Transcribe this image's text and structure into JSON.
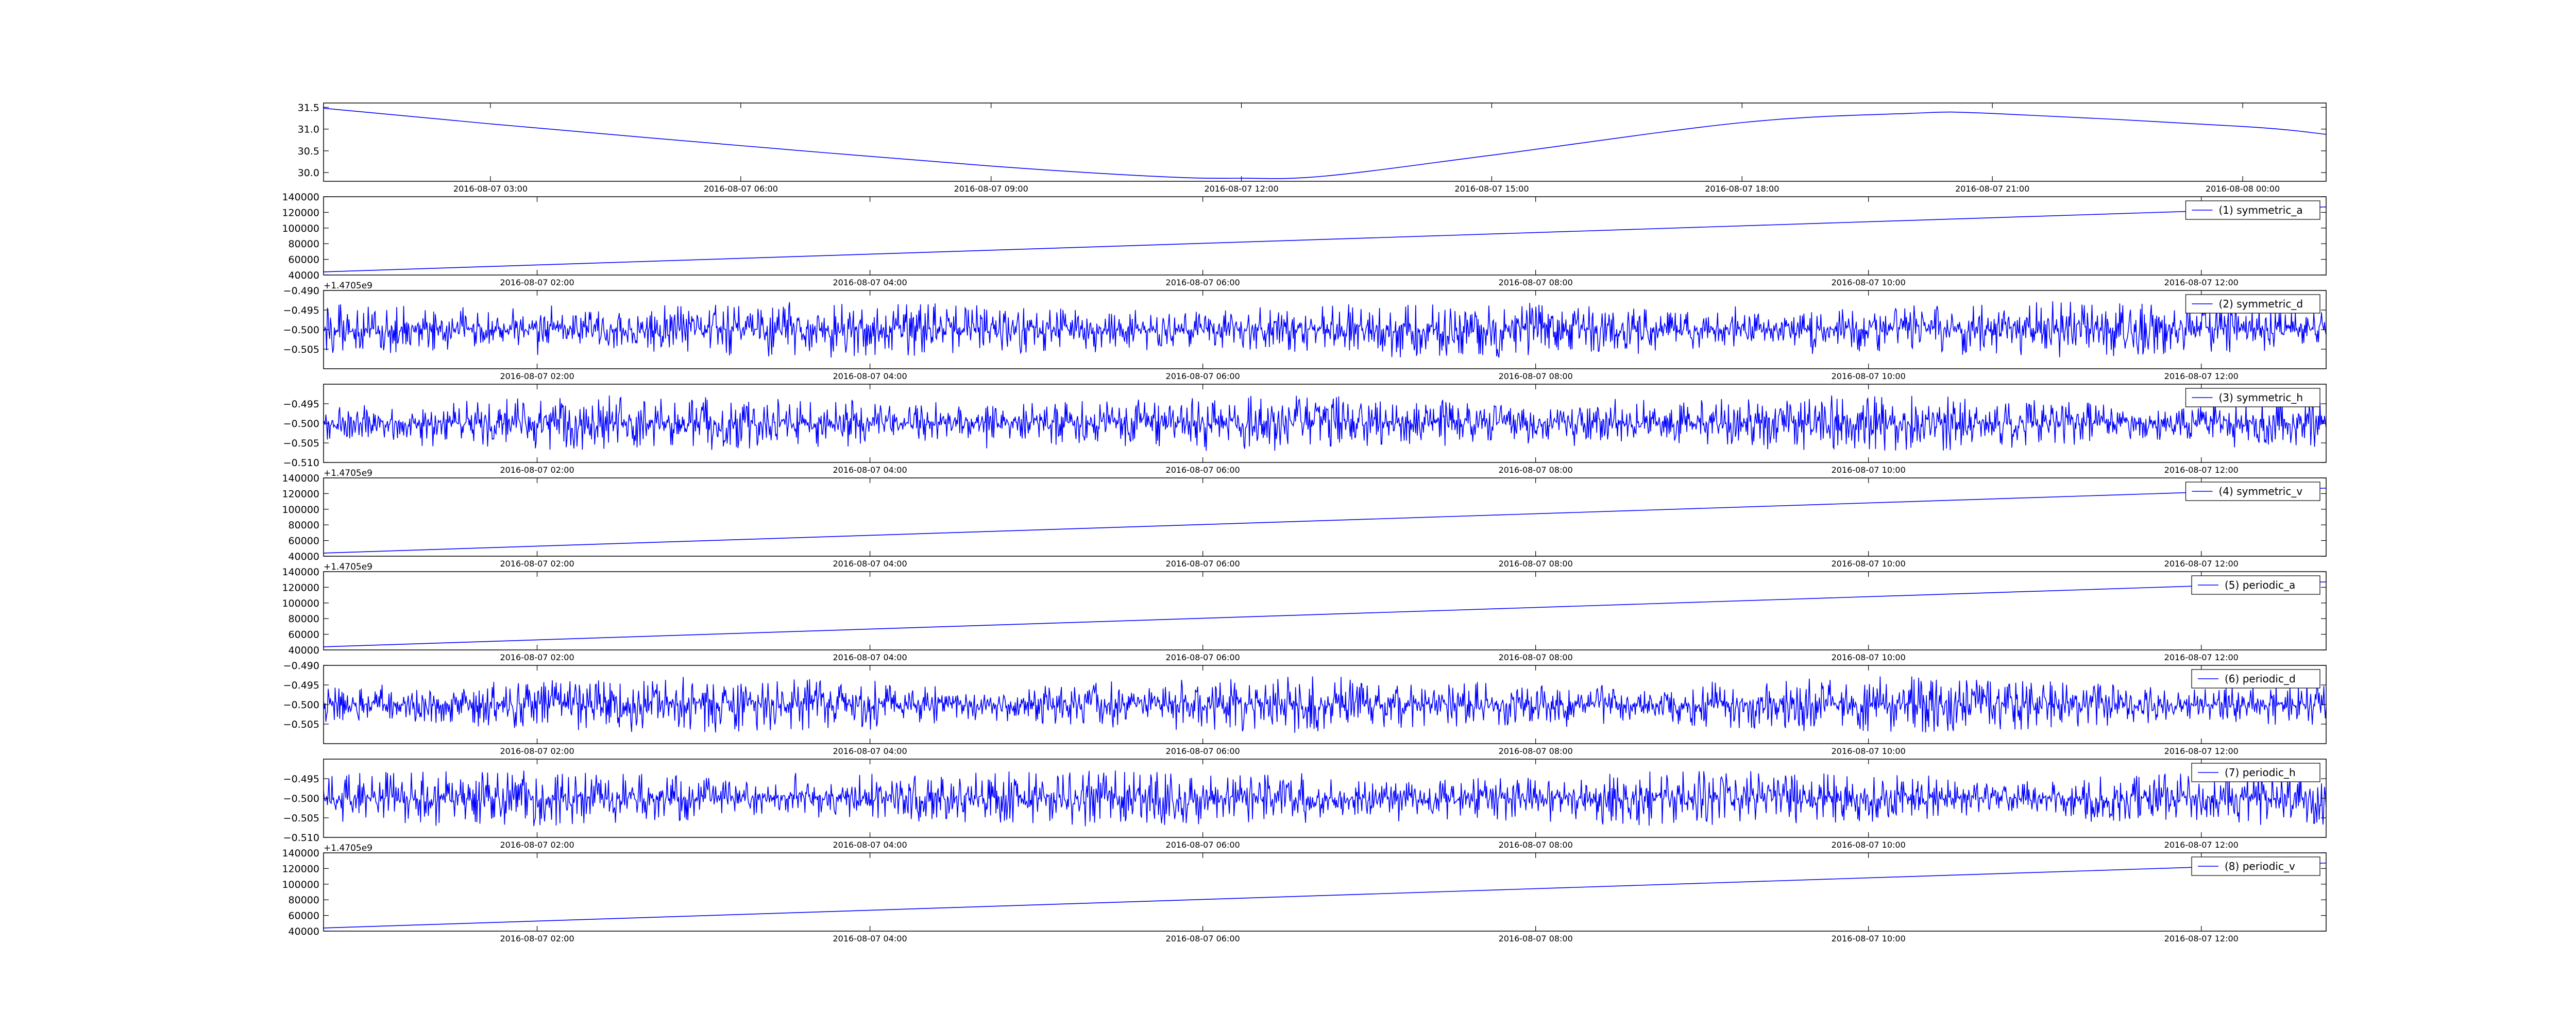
{
  "figure": {
    "line_color": "#0000ff",
    "background": "#ffffff"
  },
  "chart_data": [
    {
      "type": "line",
      "title": "",
      "legend": "",
      "xlabel": "",
      "ylabel": "",
      "x_type": "datetime",
      "xlim": [
        "2016-08-07 01:00",
        "2016-08-08 01:00"
      ],
      "ylim": [
        29.8,
        31.6
      ],
      "yticks": [
        30.0,
        30.5,
        31.0,
        31.5
      ],
      "ytick_labels": [
        "30.0",
        "30.5",
        "31.0",
        "31.5"
      ],
      "xticks": [
        "2016-08-07 03:00",
        "2016-08-07 06:00",
        "2016-08-07 09:00",
        "2016-08-07 12:00",
        "2016-08-07 15:00",
        "2016-08-07 18:00",
        "2016-08-07 21:00",
        "2016-08-08 00:00"
      ],
      "x": [
        "2016-08-07 01:00",
        "2016-08-07 03:00",
        "2016-08-07 06:00",
        "2016-08-07 09:00",
        "2016-08-07 11:00",
        "2016-08-07 12:00",
        "2016-08-07 13:00",
        "2016-08-07 15:00",
        "2016-08-07 18:00",
        "2016-08-07 20:00",
        "2016-08-07 21:00",
        "2016-08-08 00:00",
        "2016-08-08 01:00"
      ],
      "y": [
        31.48,
        31.12,
        30.62,
        30.15,
        29.91,
        29.87,
        29.92,
        30.4,
        31.15,
        31.36,
        31.36,
        31.06,
        30.88
      ],
      "offset_text": "",
      "noise": false
    },
    {
      "type": "line",
      "legend": "(1) symmetric_a",
      "x_type": "datetime",
      "xlim": [
        "2016-08-07 00:43",
        "2016-08-07 12:45"
      ],
      "ylim": [
        40000,
        140000
      ],
      "yticks": [
        40000,
        60000,
        80000,
        100000,
        120000,
        140000
      ],
      "ytick_labels": [
        "40000",
        "60000",
        "80000",
        "100000",
        "120000",
        "140000"
      ],
      "xticks": [
        "2016-08-07 02:00",
        "2016-08-07 04:00",
        "2016-08-07 06:00",
        "2016-08-07 08:00",
        "2016-08-07 10:00",
        "2016-08-07 12:00"
      ],
      "x": [
        "2016-08-07 00:43",
        "2016-08-07 12:45"
      ],
      "y": [
        44000,
        127000
      ],
      "offset_text": "+1.4705e9",
      "noise": false
    },
    {
      "type": "line",
      "legend": "(2) symmetric_d",
      "x_type": "datetime",
      "xlim": [
        "2016-08-07 00:43",
        "2016-08-07 12:45"
      ],
      "ylim": [
        -0.51,
        -0.49
      ],
      "yticks": [
        -0.505,
        -0.5,
        -0.495,
        -0.49
      ],
      "ytick_labels": [
        "−0.505",
        "−0.500",
        "−0.495",
        "−0.490"
      ],
      "xticks": [
        "2016-08-07 02:00",
        "2016-08-07 04:00",
        "2016-08-07 06:00",
        "2016-08-07 08:00",
        "2016-08-07 10:00",
        "2016-08-07 12:00"
      ],
      "x": [
        "2016-08-07 00:43",
        "2016-08-07 12:45"
      ],
      "y": [
        -0.5,
        -0.5
      ],
      "noise_amplitude": 0.005,
      "offset_text": "",
      "noise": true
    },
    {
      "type": "line",
      "legend": "(3) symmetric_h",
      "x_type": "datetime",
      "xlim": [
        "2016-08-07 00:43",
        "2016-08-07 12:45"
      ],
      "ylim": [
        -0.51,
        -0.49
      ],
      "yticks": [
        -0.51,
        -0.505,
        -0.5,
        -0.495
      ],
      "ytick_labels": [
        "−0.510",
        "−0.505",
        "−0.500",
        "−0.495"
      ],
      "xticks": [
        "2016-08-07 02:00",
        "2016-08-07 04:00",
        "2016-08-07 06:00",
        "2016-08-07 08:00",
        "2016-08-07 10:00",
        "2016-08-07 12:00"
      ],
      "x": [
        "2016-08-07 00:43",
        "2016-08-07 12:45"
      ],
      "y": [
        -0.5,
        -0.5
      ],
      "noise_amplitude": 0.005,
      "offset_text": "+1.4705e9",
      "noise": true
    },
    {
      "type": "line",
      "legend": "(4) symmetric_v",
      "x_type": "datetime",
      "xlim": [
        "2016-08-07 00:43",
        "2016-08-07 12:45"
      ],
      "ylim": [
        40000,
        140000
      ],
      "yticks": [
        40000,
        60000,
        80000,
        100000,
        120000,
        140000
      ],
      "ytick_labels": [
        "40000",
        "60000",
        "80000",
        "100000",
        "120000",
        "140000"
      ],
      "xticks": [
        "2016-08-07 02:00",
        "2016-08-07 04:00",
        "2016-08-07 06:00",
        "2016-08-07 08:00",
        "2016-08-07 10:00",
        "2016-08-07 12:00"
      ],
      "x": [
        "2016-08-07 00:43",
        "2016-08-07 12:45"
      ],
      "y": [
        44000,
        127000
      ],
      "offset_text": "+1.4705e9",
      "noise": false
    },
    {
      "type": "line",
      "legend": "(5) periodic_a",
      "x_type": "datetime",
      "xlim": [
        "2016-08-07 00:43",
        "2016-08-07 12:45"
      ],
      "ylim": [
        40000,
        140000
      ],
      "yticks": [
        40000,
        60000,
        80000,
        100000,
        120000,
        140000
      ],
      "ytick_labels": [
        "40000",
        "60000",
        "80000",
        "100000",
        "120000",
        "140000"
      ],
      "xticks": [
        "2016-08-07 02:00",
        "2016-08-07 04:00",
        "2016-08-07 06:00",
        "2016-08-07 08:00",
        "2016-08-07 10:00",
        "2016-08-07 12:00"
      ],
      "x": [
        "2016-08-07 00:43",
        "2016-08-07 12:45"
      ],
      "y": [
        44000,
        127000
      ],
      "offset_text": "",
      "noise": false
    },
    {
      "type": "line",
      "legend": "(6) periodic_d",
      "x_type": "datetime",
      "xlim": [
        "2016-08-07 00:43",
        "2016-08-07 12:45"
      ],
      "ylim": [
        -0.51,
        -0.49
      ],
      "yticks": [
        -0.505,
        -0.5,
        -0.495,
        -0.49
      ],
      "ytick_labels": [
        "−0.505",
        "−0.500",
        "−0.495",
        "−0.490"
      ],
      "xticks": [
        "2016-08-07 02:00",
        "2016-08-07 04:00",
        "2016-08-07 06:00",
        "2016-08-07 08:00",
        "2016-08-07 10:00",
        "2016-08-07 12:00"
      ],
      "x": [
        "2016-08-07 00:43",
        "2016-08-07 12:45"
      ],
      "y": [
        -0.5,
        -0.5
      ],
      "noise_amplitude": 0.005,
      "offset_text": "",
      "noise": true
    },
    {
      "type": "line",
      "legend": "(7) periodic_h",
      "x_type": "datetime",
      "xlim": [
        "2016-08-07 00:43",
        "2016-08-07 12:45"
      ],
      "ylim": [
        -0.51,
        -0.49
      ],
      "yticks": [
        -0.51,
        -0.505,
        -0.5,
        -0.495
      ],
      "ytick_labels": [
        "−0.510",
        "−0.505",
        "−0.500",
        "−0.495"
      ],
      "xticks": [
        "2016-08-07 02:00",
        "2016-08-07 04:00",
        "2016-08-07 06:00",
        "2016-08-07 08:00",
        "2016-08-07 10:00",
        "2016-08-07 12:00"
      ],
      "x": [
        "2016-08-07 00:43",
        "2016-08-07 12:45"
      ],
      "y": [
        -0.5,
        -0.5
      ],
      "noise_amplitude": 0.005,
      "offset_text": "+1.4705e9",
      "noise": true
    },
    {
      "type": "line",
      "legend": "(8) periodic_v",
      "x_type": "datetime",
      "xlim": [
        "2016-08-07 00:43",
        "2016-08-07 12:45"
      ],
      "ylim": [
        40000,
        140000
      ],
      "yticks": [
        40000,
        60000,
        80000,
        100000,
        120000,
        140000
      ],
      "ytick_labels": [
        "40000",
        "60000",
        "80000",
        "100000",
        "120000",
        "140000"
      ],
      "xticks": [
        "2016-08-07 02:00",
        "2016-08-07 04:00",
        "2016-08-07 06:00",
        "2016-08-07 08:00",
        "2016-08-07 10:00",
        "2016-08-07 12:00"
      ],
      "x": [
        "2016-08-07 00:43",
        "2016-08-07 12:45"
      ],
      "y": [
        44000,
        127000
      ],
      "offset_text": "",
      "noise": false
    }
  ]
}
